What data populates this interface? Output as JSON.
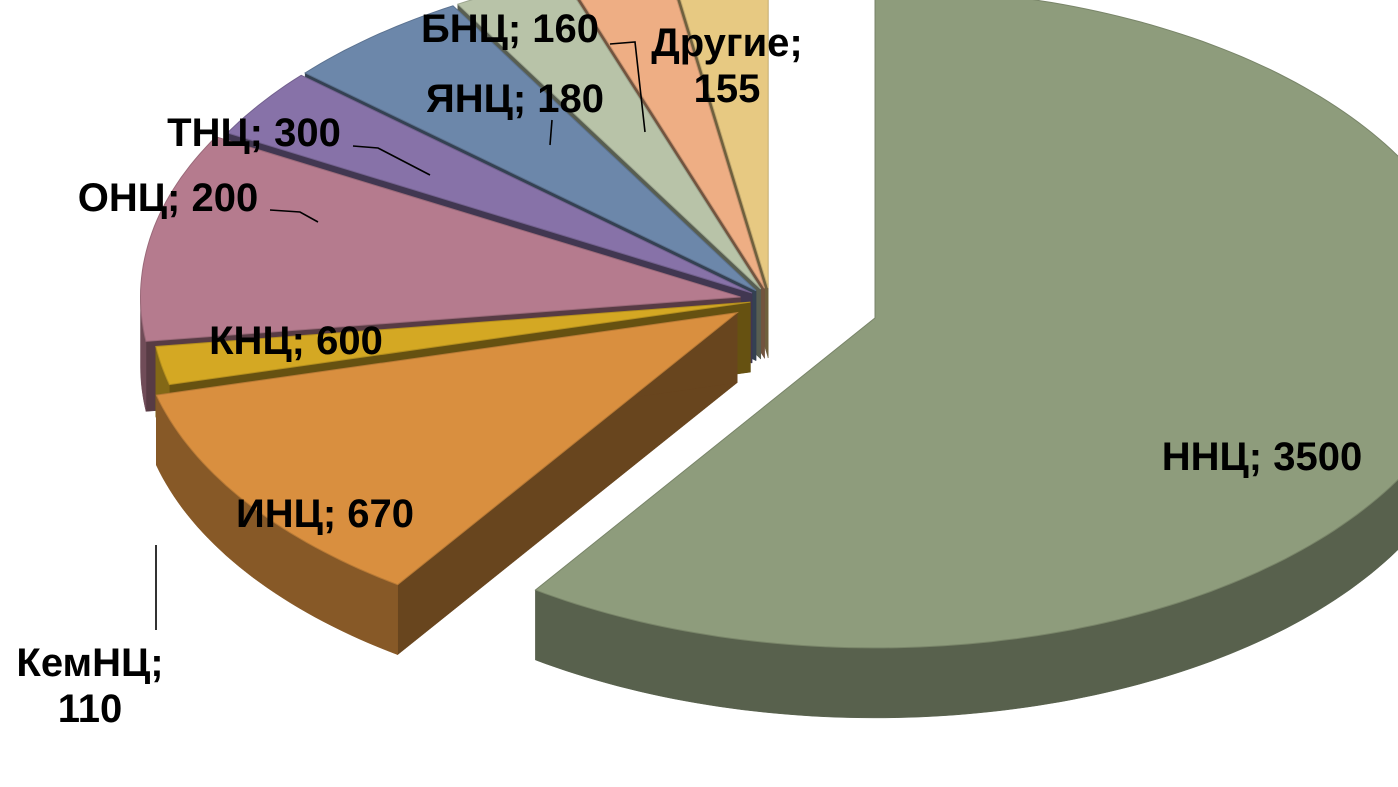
{
  "chart_data": {
    "type": "pie",
    "variant": "3d-exploded",
    "title": "",
    "legend": "none",
    "slices": [
      {
        "category": "ННЦ",
        "value": 3500,
        "label_lines": [
          "ННЦ; 3500"
        ],
        "color": "#8e9c7c"
      },
      {
        "category": "ИНЦ",
        "value": 670,
        "label_lines": [
          "ИНЦ; 670"
        ],
        "color": "#d98f3f"
      },
      {
        "category": "КемНЦ",
        "value": 110,
        "label_lines": [
          "КемНЦ;",
          "110"
        ],
        "color": "#d4a823"
      },
      {
        "category": "КНЦ",
        "value": 600,
        "label_lines": [
          "КНЦ; 600"
        ],
        "color": "#b57b8e"
      },
      {
        "category": "ОНЦ",
        "value": 200,
        "label_lines": [
          "ОНЦ; 200"
        ],
        "color": "#8772a8"
      },
      {
        "category": "ТНЦ",
        "value": 300,
        "label_lines": [
          "ТНЦ; 300"
        ],
        "color": "#6c87aa"
      },
      {
        "category": "ЯНЦ",
        "value": 180,
        "label_lines": [
          "ЯНЦ; 180"
        ],
        "color": "#b8c3a8"
      },
      {
        "category": "БНЦ",
        "value": 160,
        "label_lines": [
          "БНЦ; 160"
        ],
        "color": "#eeae84"
      },
      {
        "category": "Другие",
        "value": 155,
        "label_lines": [
          "Другие;",
          "155"
        ],
        "color": "#e7c982"
      }
    ]
  }
}
